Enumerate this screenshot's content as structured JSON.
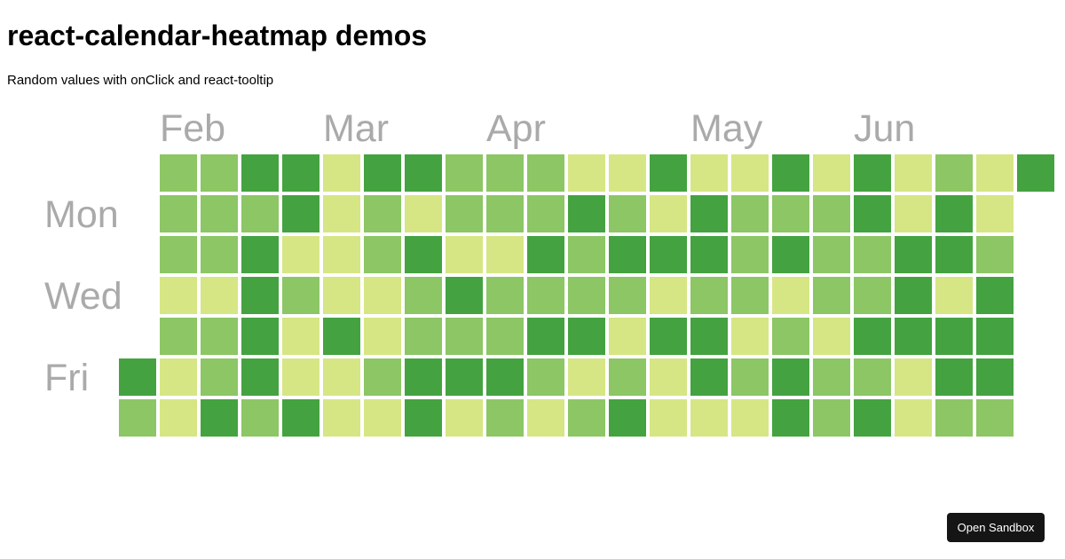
{
  "page": {
    "title": "react-calendar-heatmap demos",
    "subtitle": "Random values with onClick and react-tooltip",
    "sandbox_button_label": "Open Sandbox"
  },
  "colors": {
    "scale": [
      "#d6e685",
      "#8cc665",
      "#44a340"
    ],
    "label_color": "#aaaaaa",
    "button_bg": "#151515"
  },
  "chart_data": {
    "type": "heatmap",
    "month_labels": [
      "Feb",
      "Mar",
      "Apr",
      "May",
      "Jun"
    ],
    "weekday_labels": [
      "Mon",
      "Wed",
      "Fri"
    ],
    "color_levels": "1 = light, 2 = medium, 3 = dark",
    "first_week_start_row": 5,
    "last_week_end_row": 0,
    "weeks": [
      [
        null,
        null,
        null,
        null,
        null,
        3,
        2
      ],
      [
        2,
        2,
        2,
        1,
        2,
        1,
        1
      ],
      [
        2,
        2,
        2,
        1,
        2,
        2,
        3
      ],
      [
        3,
        2,
        3,
        3,
        3,
        3,
        2
      ],
      [
        3,
        3,
        1,
        2,
        1,
        1,
        3
      ],
      [
        1,
        1,
        1,
        1,
        3,
        1,
        1
      ],
      [
        3,
        2,
        2,
        1,
        1,
        2,
        1
      ],
      [
        3,
        1,
        3,
        2,
        2,
        3,
        3
      ],
      [
        2,
        2,
        1,
        3,
        2,
        3,
        1
      ],
      [
        2,
        2,
        1,
        2,
        2,
        3,
        2
      ],
      [
        2,
        2,
        3,
        2,
        3,
        2,
        1
      ],
      [
        1,
        3,
        2,
        2,
        3,
        1,
        2
      ],
      [
        1,
        2,
        3,
        2,
        1,
        2,
        3
      ],
      [
        3,
        1,
        3,
        1,
        3,
        1,
        1
      ],
      [
        1,
        3,
        3,
        2,
        3,
        3,
        1
      ],
      [
        1,
        2,
        2,
        2,
        1,
        2,
        1
      ],
      [
        3,
        2,
        3,
        1,
        2,
        3,
        3
      ],
      [
        1,
        2,
        2,
        2,
        1,
        2,
        2
      ],
      [
        3,
        3,
        2,
        2,
        3,
        2,
        3
      ],
      [
        1,
        1,
        3,
        3,
        3,
        1,
        1
      ],
      [
        2,
        3,
        3,
        1,
        3,
        3,
        2
      ],
      [
        1,
        1,
        2,
        3,
        3,
        3,
        2
      ],
      [
        3,
        null,
        null,
        null,
        null,
        null,
        null
      ]
    ]
  }
}
